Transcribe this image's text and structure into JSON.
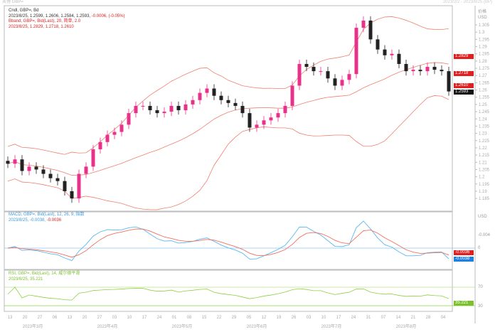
{
  "window": {
    "title": "英镑 GBP=",
    "range": "2023/2/2 - 2023/8/25 (BP)"
  },
  "legend": {
    "cndl_title": "Cndl, GBP=, Bd",
    "cndl_values": "2023/8/25, 1.2599, 1.2606, 1.2584, 1.2593,",
    "cndl_change": "-0.0006, (-0.05%)",
    "bband_title": "Bband, GBP=, Bid(Last), 20, 简单, 2.0",
    "bband_values": "2023/8/25, 1.2829, 1.2718, 1.2610",
    "macd_title": "MACD, GBP=, Bid(Last), 12, 26, 9, 指数",
    "macd_values": "2023/8/25, -0.0038,",
    "macd_signal": "-0.0036",
    "rsi_title": "RSI, GBP=, Bid(Last), 14, 威尔德平滑",
    "rsi_values": "2023/8/25, 35.221"
  },
  "axis": {
    "price_label": "价格",
    "currency": "USD",
    "macd_tick": "-0.004",
    "macd_zero": "0",
    "rsi_high": "70",
    "rsi_low": "30"
  },
  "badges": {
    "upper": "1.2829",
    "mid": "1.2718",
    "lower": "1.2610",
    "close": "1.2593",
    "macd_signal": "-0.0036",
    "macd": "-0.0038",
    "rsi": "35.221"
  },
  "colors": {
    "up": "#e8318a",
    "down": "#222222",
    "band": "#f08070",
    "macd": "#5bb8f0",
    "signal": "#f07060",
    "rsi": "#8cd040",
    "badge_red": "#e02020",
    "badge_blue": "#2080e0"
  },
  "chart_data": {
    "type": "candlestick",
    "ylim": [
      1.18,
      1.31
    ],
    "yticks": [
      1.185,
      1.19,
      1.195,
      1.2,
      1.205,
      1.21,
      1.215,
      1.22,
      1.225,
      1.23,
      1.235,
      1.24,
      1.245,
      1.25,
      1.255,
      1.26,
      1.265,
      1.27,
      1.275,
      1.28,
      1.285,
      1.29,
      1.295,
      1.3,
      1.305
    ],
    "close": [
      1.209,
      1.212,
      1.204,
      1.207,
      1.205,
      1.202,
      1.199,
      1.197,
      1.19,
      1.185,
      1.202,
      1.207,
      1.219,
      1.224,
      1.229,
      1.231,
      1.236,
      1.244,
      1.249,
      1.249,
      1.246,
      1.244,
      1.245,
      1.249,
      1.246,
      1.25,
      1.253,
      1.258,
      1.261,
      1.256,
      1.253,
      1.251,
      1.249,
      1.244,
      1.234,
      1.236,
      1.239,
      1.241,
      1.244,
      1.249,
      1.263,
      1.278,
      1.276,
      1.273,
      1.273,
      1.268,
      1.263,
      1.267,
      1.271,
      1.303,
      1.308,
      1.295,
      1.288,
      1.284,
      1.285,
      1.278,
      1.273,
      1.274,
      1.273,
      1.276,
      1.274,
      1.273,
      1.259
    ],
    "bollinger": {
      "period": 20,
      "stddev": 2.0
    },
    "xticks": [
      "13",
      "20",
      "27",
      "06",
      "13",
      "20",
      "27",
      "03",
      "10",
      "17",
      "24",
      "01",
      "08",
      "15",
      "22",
      "29",
      "05",
      "12",
      "19",
      "26",
      "03",
      "10",
      "17",
      "24",
      "31",
      "07",
      "14",
      "21",
      "28",
      "04"
    ],
    "months": [
      "2023年3月",
      "2023年4月",
      "2023年5月",
      "2023年6月",
      "2023年7月",
      "2023年8月"
    ]
  }
}
